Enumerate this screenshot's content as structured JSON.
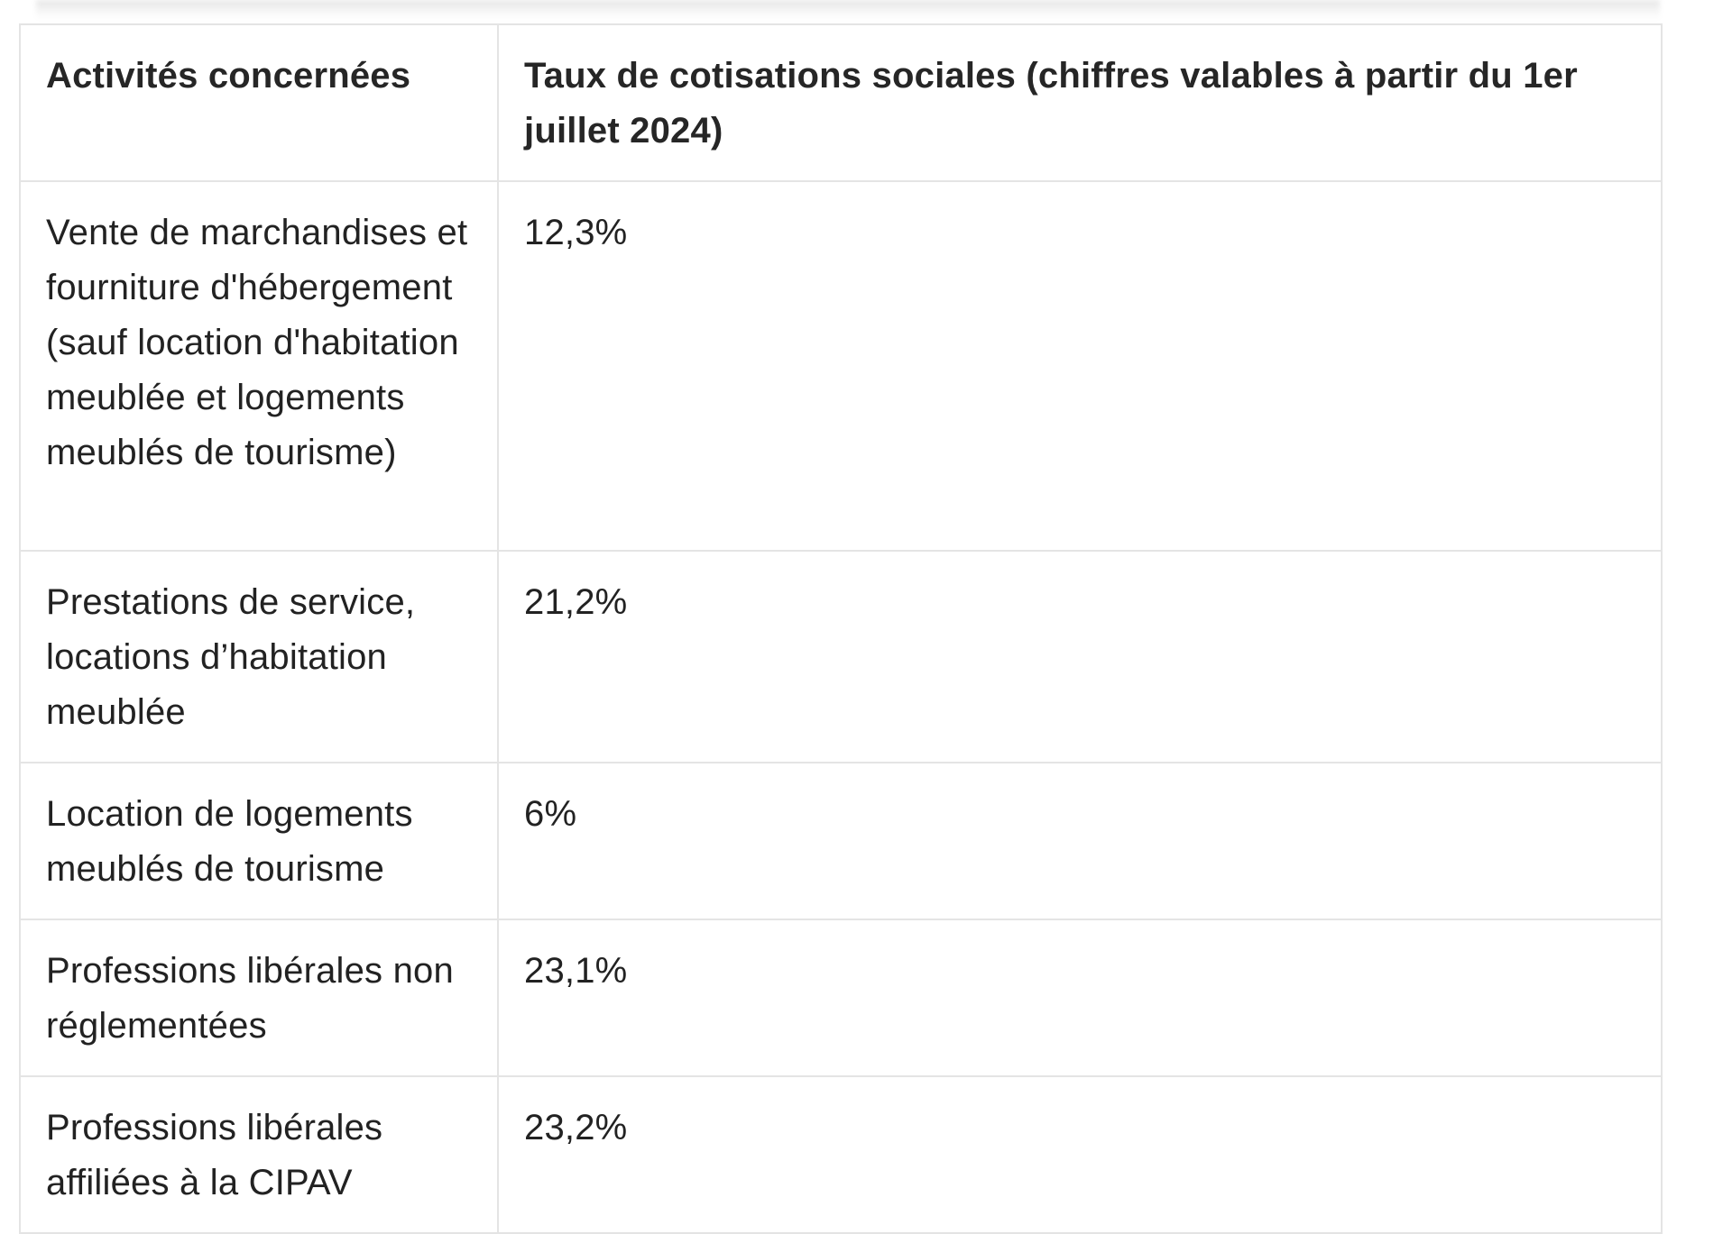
{
  "table": {
    "headers": [
      "Activités concernées",
      "Taux de cotisations sociales (chiffres valables à partir du 1er juillet 2024)"
    ],
    "rows": [
      {
        "activity": "Vente de marchandises et fourniture d'hébergement (sauf location d'habitation meublée et logements meublés de tourisme)",
        "rate": "12,3%"
      },
      {
        "activity": "Prestations de service, locations d’habitation meublée",
        "rate": "21,2%"
      },
      {
        "activity": "Location de logements meublés de tourisme",
        "rate": "6%"
      },
      {
        "activity": "Professions libérales non réglementées",
        "rate": "23,1%"
      },
      {
        "activity": "Professions libérales affiliées à la CIPAV",
        "rate": "23,2%"
      }
    ]
  }
}
